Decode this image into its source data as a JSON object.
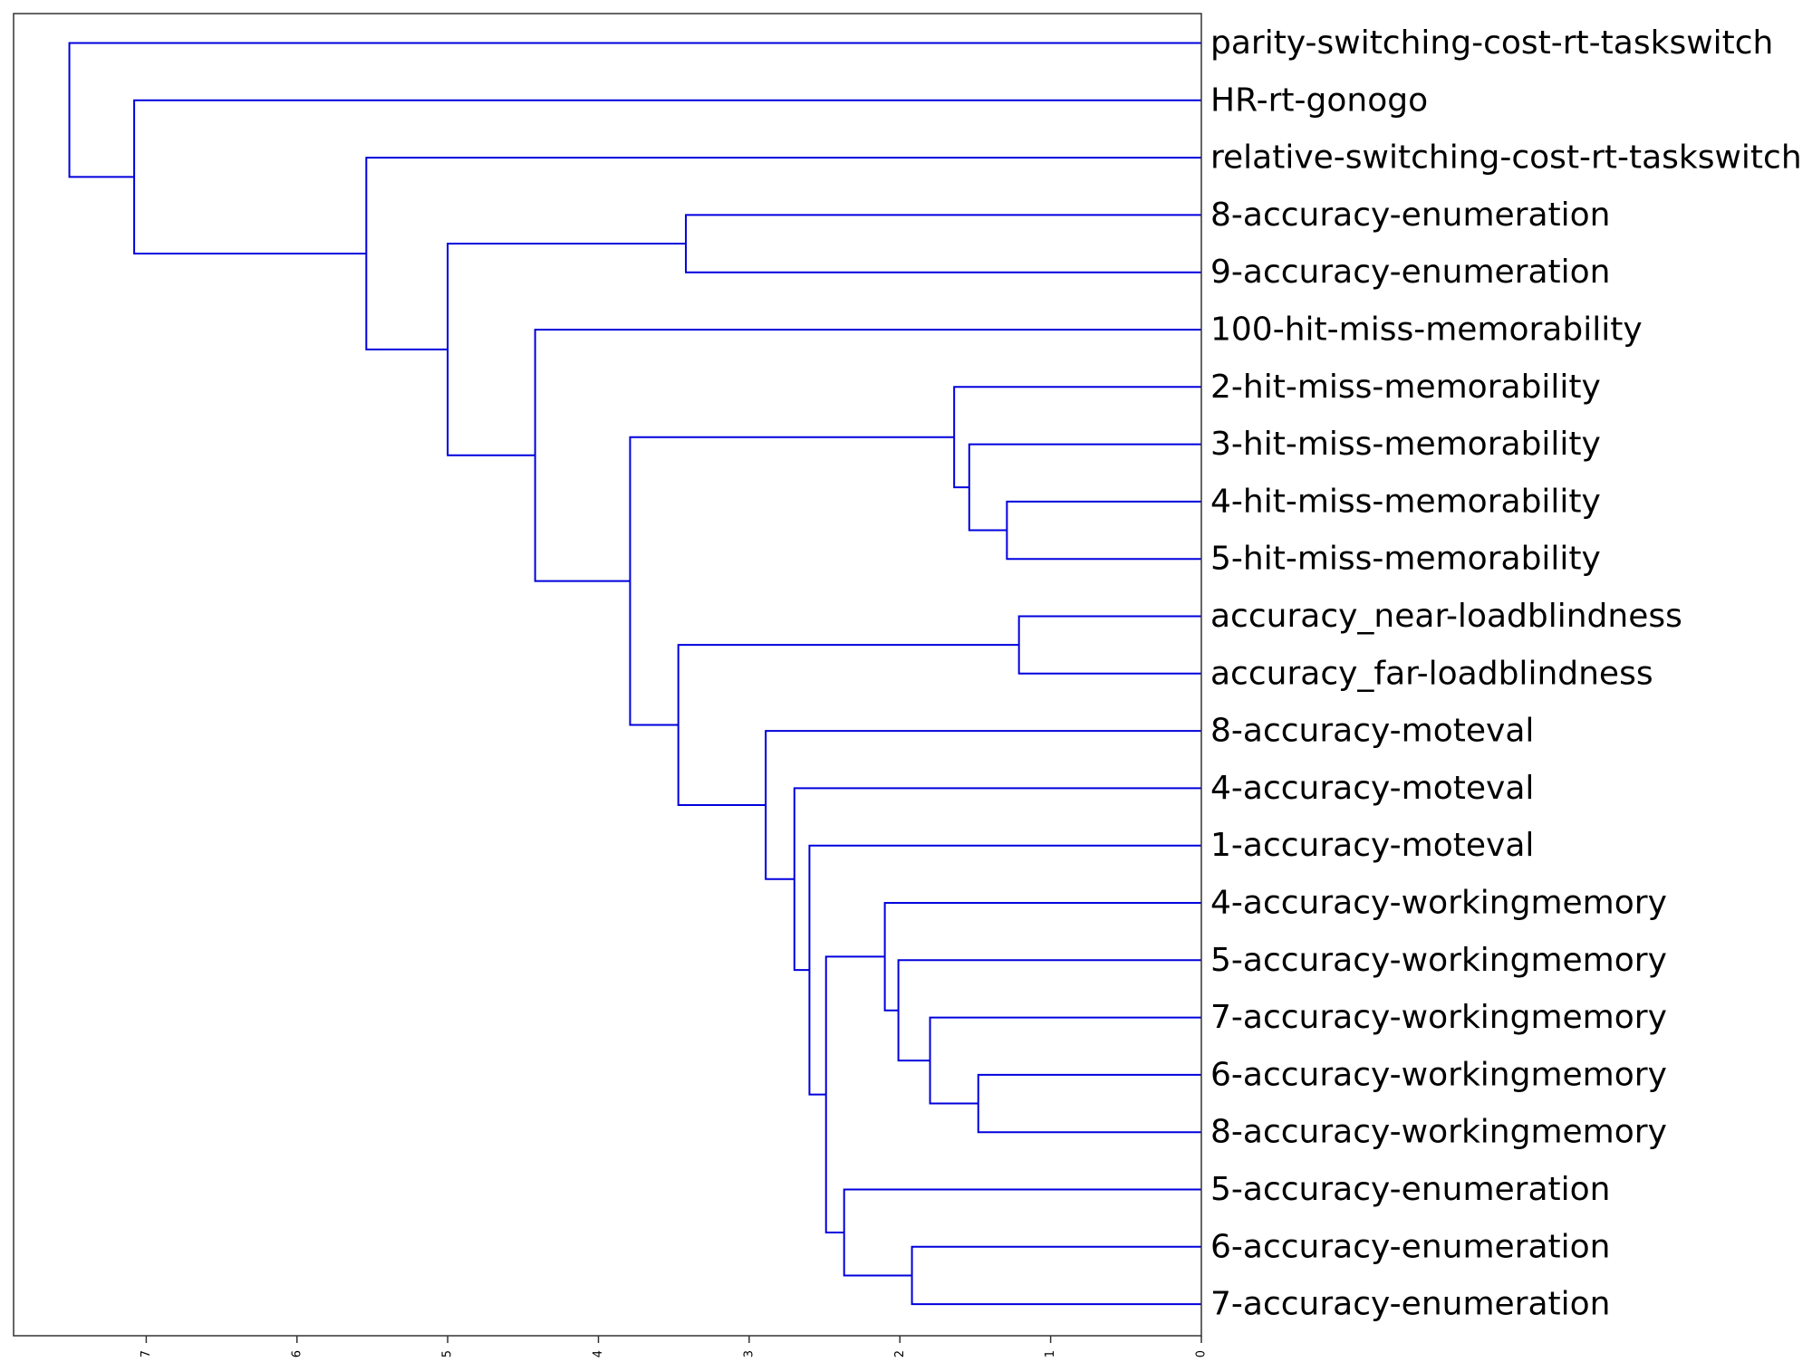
{
  "chart_data": {
    "type": "dendrogram",
    "orientation": "left",
    "x_axis": {
      "ticks": [
        7,
        6,
        5,
        4,
        3,
        2,
        1,
        0
      ],
      "tick_labels": [
        "7",
        "6",
        "5",
        "4",
        "3",
        "2",
        "1",
        "0"
      ],
      "xlim": [
        7.88,
        0
      ],
      "tick_label_rotation": "vertical"
    },
    "leaves": [
      "parity-switching-cost-rt-taskswitch",
      "HR-rt-gonogo",
      "relative-switching-cost-rt-taskswitch",
      "8-accuracy-enumeration",
      "9-accuracy-enumeration",
      "100-hit-miss-memorability",
      "2-hit-miss-memorability",
      "3-hit-miss-memorability",
      "4-hit-miss-memorability",
      "5-hit-miss-memorability",
      "accuracy_near-loadblindness",
      "accuracy_far-loadblindness",
      "8-accuracy-moteval",
      "4-accuracy-moteval",
      "1-accuracy-moteval",
      "4-accuracy-workingmemory",
      "5-accuracy-workingmemory",
      "7-accuracy-workingmemory",
      "6-accuracy-workingmemory",
      "8-accuracy-workingmemory",
      "5-accuracy-enumeration",
      "6-accuracy-enumeration",
      "7-accuracy-enumeration"
    ],
    "merges": [
      {
        "id": "m1",
        "left": "L18",
        "right": "L19",
        "distance": 1.48
      },
      {
        "id": "m2",
        "left": "L10",
        "right": "L11",
        "distance": 1.21
      },
      {
        "id": "m3",
        "left": "L8",
        "right": "L9",
        "distance": 1.29
      },
      {
        "id": "m4",
        "left": "L7",
        "right": "m3",
        "distance": 1.54
      },
      {
        "id": "m5",
        "left": "L6",
        "right": "m4",
        "distance": 1.64
      },
      {
        "id": "m6",
        "left": "L17",
        "right": "m1",
        "distance": 1.8
      },
      {
        "id": "m7",
        "left": "L21",
        "right": "L22",
        "distance": 1.92
      },
      {
        "id": "m8",
        "left": "L16",
        "right": "m6",
        "distance": 2.01
      },
      {
        "id": "m9",
        "left": "L15",
        "right": "m8",
        "distance": 2.1
      },
      {
        "id": "m10",
        "left": "L20",
        "right": "m7",
        "distance": 2.37
      },
      {
        "id": "m11",
        "left": "m9",
        "right": "m10",
        "distance": 2.49
      },
      {
        "id": "m12",
        "left": "L14",
        "right": "m11",
        "distance": 2.6
      },
      {
        "id": "m13",
        "left": "L13",
        "right": "m12",
        "distance": 2.7
      },
      {
        "id": "m14",
        "left": "L12",
        "right": "m13",
        "distance": 2.89
      },
      {
        "id": "m15",
        "left": "L3",
        "right": "L4",
        "distance": 3.42
      },
      {
        "id": "m16",
        "left": "m2",
        "right": "m14",
        "distance": 3.47
      },
      {
        "id": "m17",
        "left": "m5",
        "right": "m16",
        "distance": 3.79
      },
      {
        "id": "m18",
        "left": "L5",
        "right": "m17",
        "distance": 4.42
      },
      {
        "id": "m19",
        "left": "m15",
        "right": "m18",
        "distance": 5.0
      },
      {
        "id": "m20",
        "left": "L2",
        "right": "m19",
        "distance": 5.54
      },
      {
        "id": "m21",
        "left": "L1",
        "right": "m20",
        "distance": 7.08
      },
      {
        "id": "m22",
        "left": "L0",
        "right": "m21",
        "distance": 7.51
      }
    ],
    "colors": {
      "link": "#0000dd",
      "frame": "#333333",
      "text": "#000000"
    },
    "grid": false,
    "legend": "none"
  }
}
